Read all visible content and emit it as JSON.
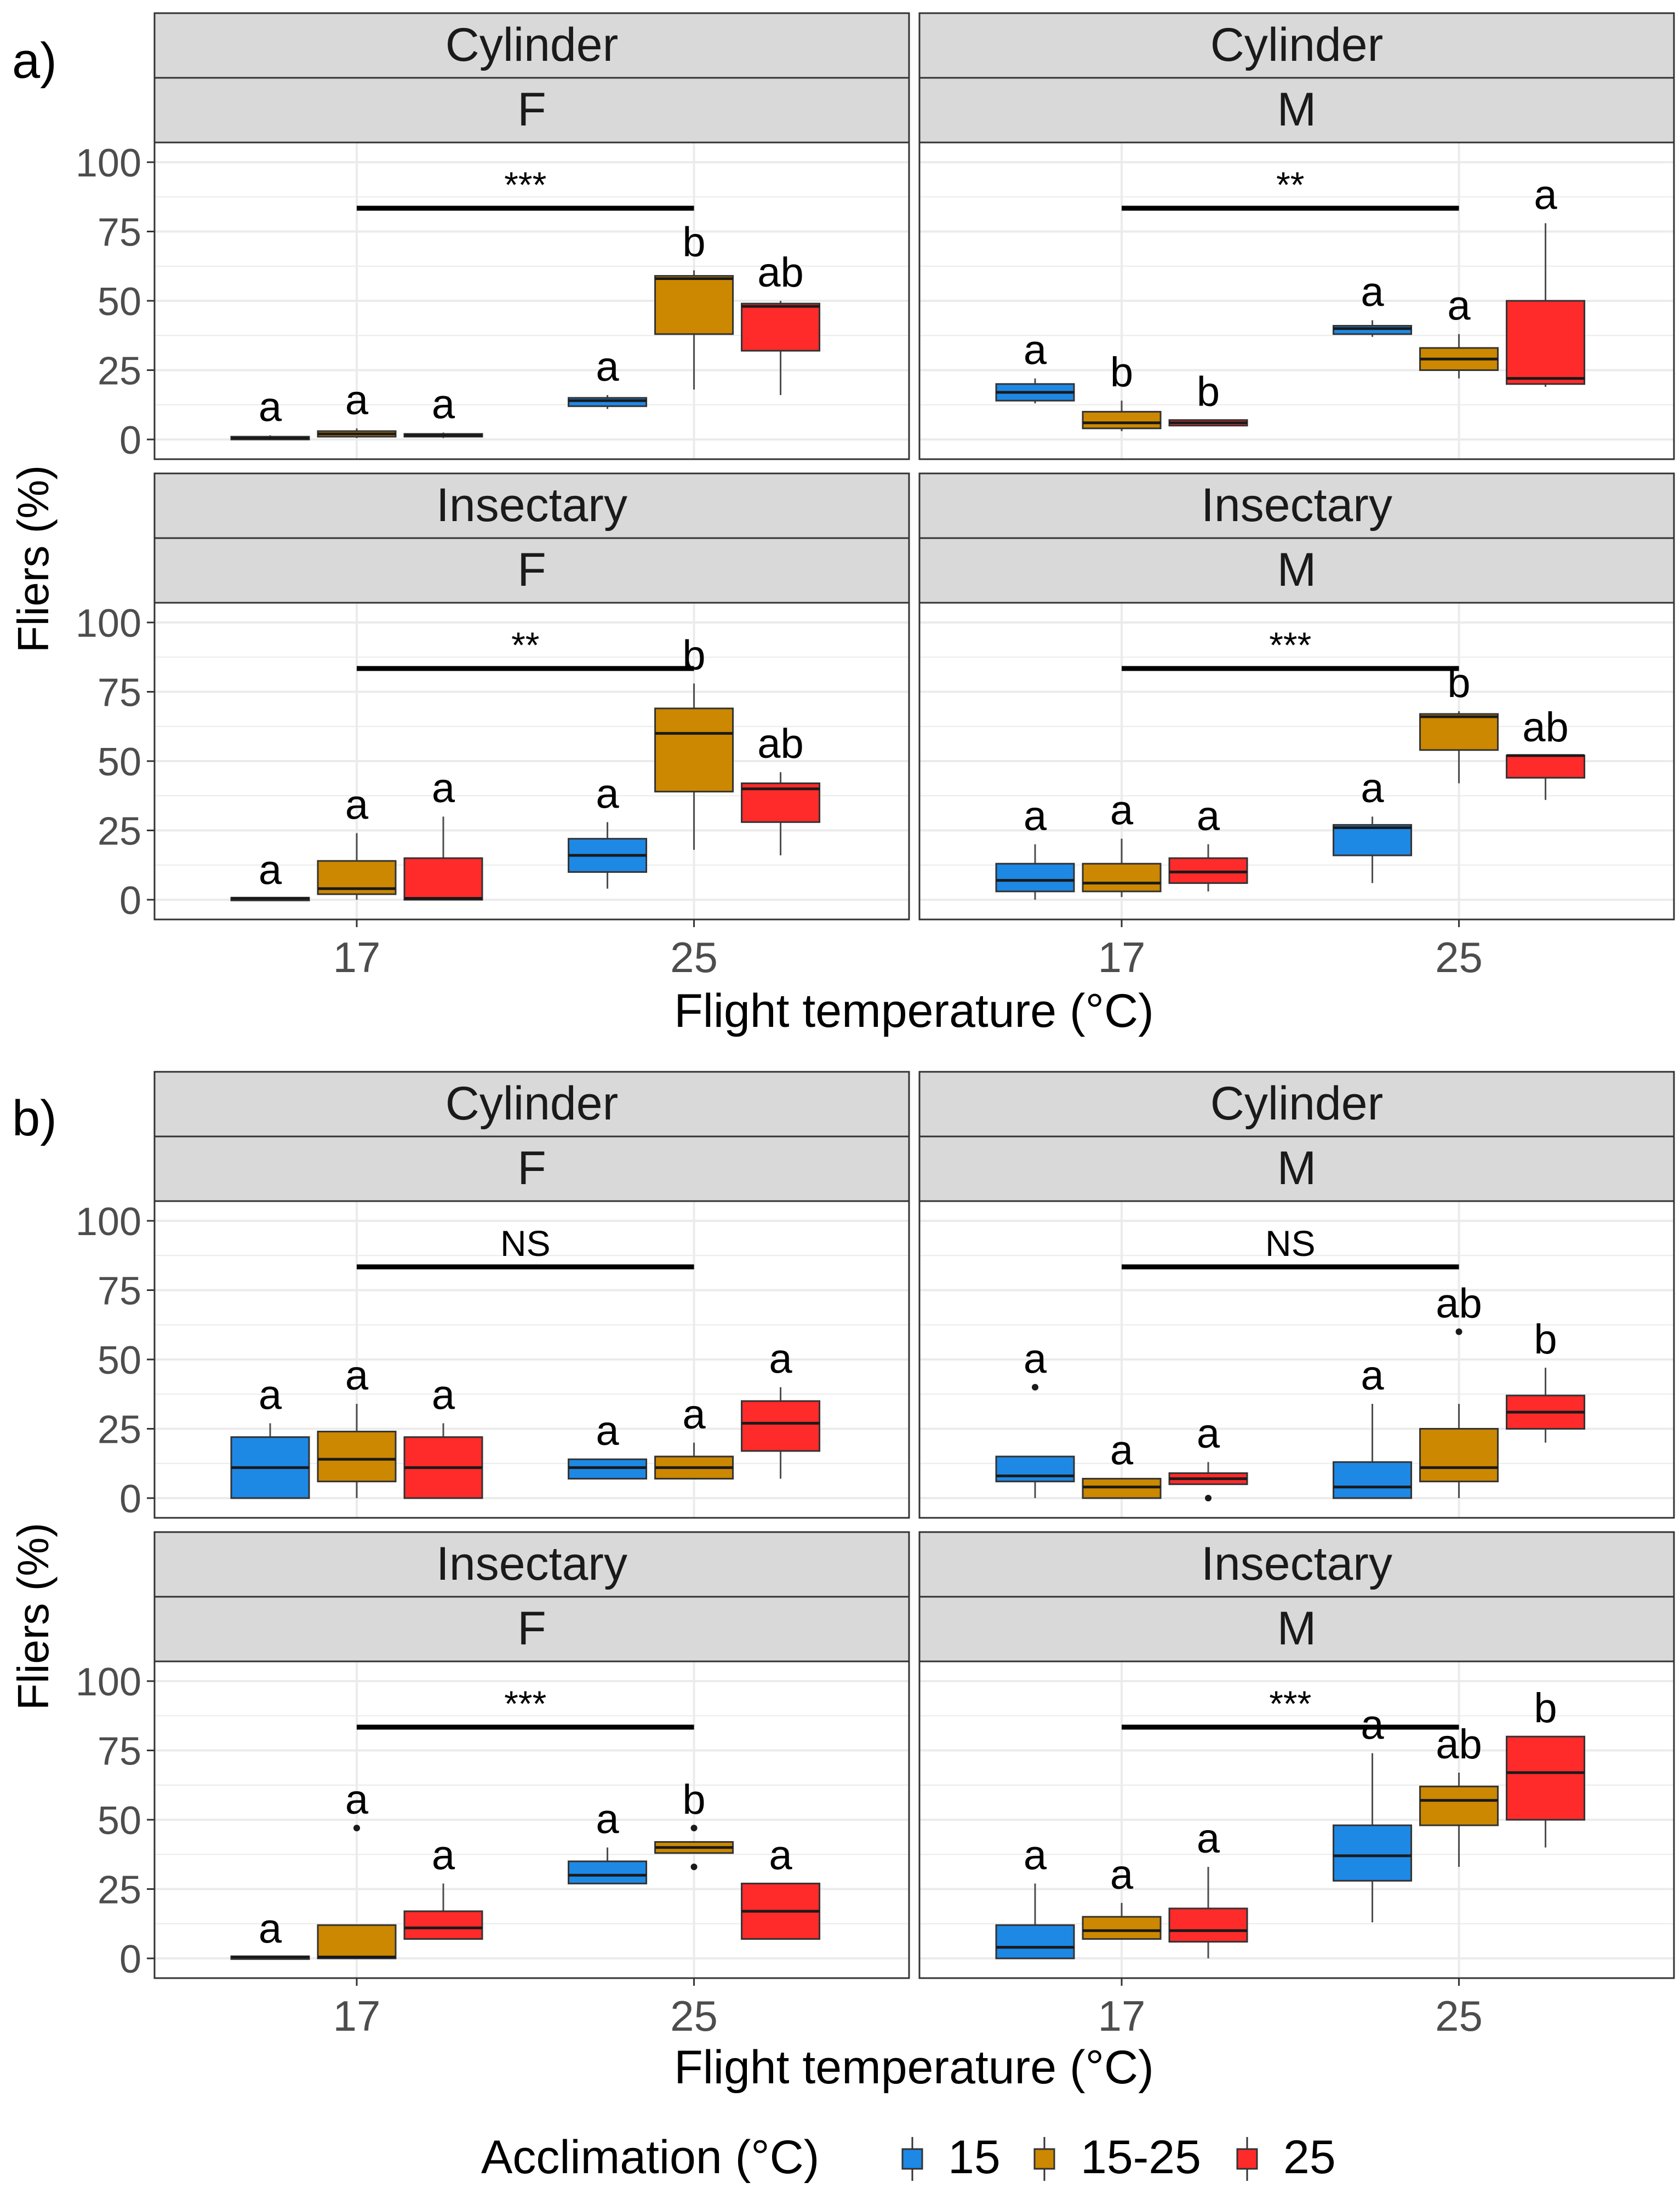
{
  "panel_labels": [
    "a)",
    "b)"
  ],
  "x_axis_label": "Flight temperature (°C)",
  "y_axis_label": "Fliers (%)",
  "legend": {
    "title": "Acclimation (°C)",
    "items": [
      {
        "label": "15",
        "color": "#1E88E5"
      },
      {
        "label": "15-25",
        "color": "#CC8800"
      },
      {
        "label": "25",
        "color": "#FF2A2A"
      }
    ]
  },
  "colors": {
    "15": "#1E88E5",
    "15-25": "#CC8800",
    "25": "#FF2A2A",
    "strip_bg": "#D9D9D9",
    "grid": "#EBEBEB"
  },
  "chart_data": [
    {
      "type": "boxplot",
      "figure_part": "a)",
      "ylim": [
        0,
        100
      ],
      "y_ticks": [
        0,
        25,
        50,
        75,
        100
      ],
      "x_categories": [
        "17",
        "25"
      ],
      "series_names": [
        "15",
        "15-25",
        "25"
      ],
      "facets": [
        {
          "strip": [
            "Cylinder",
            "F"
          ],
          "bracket": {
            "x_from": "17",
            "x_to": "25",
            "label": "***"
          },
          "groups": [
            {
              "x": "17",
              "boxes": [
                {
                  "series": "15",
                  "min": 0,
                  "q1": 0,
                  "median": 0.5,
                  "q3": 1,
                  "max": 1.5,
                  "letter": "a"
                },
                {
                  "series": "15-25",
                  "min": 0.5,
                  "q1": 1,
                  "median": 2,
                  "q3": 3,
                  "max": 4,
                  "letter": "a"
                },
                {
                  "series": "25",
                  "min": 0.5,
                  "q1": 1,
                  "median": 1.5,
                  "q3": 2,
                  "max": 2.5,
                  "letter": "a"
                }
              ]
            },
            {
              "x": "25",
              "boxes": [
                {
                  "series": "15",
                  "min": 11,
                  "q1": 12,
                  "median": 14,
                  "q3": 15,
                  "max": 16,
                  "letter": "a"
                },
                {
                  "series": "15-25",
                  "min": 18,
                  "q1": 38,
                  "median": 58,
                  "q3": 59,
                  "max": 61,
                  "letter": "b"
                },
                {
                  "series": "25",
                  "min": 16,
                  "q1": 32,
                  "median": 48,
                  "q3": 49,
                  "max": 50,
                  "letter": "ab"
                }
              ]
            }
          ]
        },
        {
          "strip": [
            "Cylinder",
            "M"
          ],
          "bracket": {
            "x_from": "17",
            "x_to": "25",
            "label": "**"
          },
          "groups": [
            {
              "x": "17",
              "boxes": [
                {
                  "series": "15",
                  "min": 13,
                  "q1": 14,
                  "median": 17,
                  "q3": 20,
                  "max": 22,
                  "letter": "a"
                },
                {
                  "series": "15-25",
                  "min": 3,
                  "q1": 4,
                  "median": 6,
                  "q3": 10,
                  "max": 14,
                  "letter": "b"
                },
                {
                  "series": "25",
                  "min": 5,
                  "q1": 5,
                  "median": 6,
                  "q3": 7,
                  "max": 7,
                  "letter": "b"
                }
              ]
            },
            {
              "x": "25",
              "boxes": [
                {
                  "series": "15",
                  "min": 37,
                  "q1": 38,
                  "median": 40,
                  "q3": 41,
                  "max": 43,
                  "letter": "a"
                },
                {
                  "series": "15-25",
                  "min": 22,
                  "q1": 25,
                  "median": 29,
                  "q3": 33,
                  "max": 38,
                  "letter": "a"
                },
                {
                  "series": "25",
                  "min": 19,
                  "q1": 20,
                  "median": 22,
                  "q3": 50,
                  "max": 78,
                  "letter": "a"
                }
              ]
            }
          ]
        },
        {
          "strip": [
            "Insectary",
            "F"
          ],
          "bracket": {
            "x_from": "17",
            "x_to": "25",
            "label": "**"
          },
          "groups": [
            {
              "x": "17",
              "boxes": [
                {
                  "series": "15",
                  "min": 0,
                  "q1": 0,
                  "median": 0.5,
                  "q3": 0.5,
                  "max": 0.5,
                  "letter": "a"
                },
                {
                  "series": "15-25",
                  "min": 0,
                  "q1": 2,
                  "median": 4,
                  "q3": 14,
                  "max": 24,
                  "letter": "a"
                },
                {
                  "series": "25",
                  "min": 0,
                  "q1": 0,
                  "median": 0.5,
                  "q3": 15,
                  "max": 30,
                  "letter": "a"
                }
              ]
            },
            {
              "x": "25",
              "boxes": [
                {
                  "series": "15",
                  "min": 4,
                  "q1": 10,
                  "median": 16,
                  "q3": 22,
                  "max": 28,
                  "letter": "a"
                },
                {
                  "series": "15-25",
                  "min": 18,
                  "q1": 39,
                  "median": 60,
                  "q3": 69,
                  "max": 78,
                  "letter": "b"
                },
                {
                  "series": "25",
                  "min": 16,
                  "q1": 28,
                  "median": 40,
                  "q3": 42,
                  "max": 46,
                  "letter": "ab"
                }
              ]
            }
          ]
        },
        {
          "strip": [
            "Insectary",
            "M"
          ],
          "bracket": {
            "x_from": "17",
            "x_to": "25",
            "label": "***"
          },
          "groups": [
            {
              "x": "17",
              "boxes": [
                {
                  "series": "15",
                  "min": 0,
                  "q1": 3,
                  "median": 7,
                  "q3": 13,
                  "max": 20,
                  "letter": "a"
                },
                {
                  "series": "15-25",
                  "min": 1,
                  "q1": 3,
                  "median": 6,
                  "q3": 13,
                  "max": 22,
                  "letter": "a"
                },
                {
                  "series": "25",
                  "min": 3,
                  "q1": 6,
                  "median": 10,
                  "q3": 15,
                  "max": 20,
                  "letter": "a"
                }
              ]
            },
            {
              "x": "25",
              "boxes": [
                {
                  "series": "15",
                  "min": 6,
                  "q1": 16,
                  "median": 26,
                  "q3": 27,
                  "max": 30,
                  "letter": "a"
                },
                {
                  "series": "15-25",
                  "min": 42,
                  "q1": 54,
                  "median": 66,
                  "q3": 67,
                  "max": 68,
                  "letter": "b"
                },
                {
                  "series": "25",
                  "min": 36,
                  "q1": 44,
                  "median": 52,
                  "q3": 52,
                  "max": 52,
                  "letter": "ab"
                }
              ]
            }
          ]
        }
      ]
    },
    {
      "type": "boxplot",
      "figure_part": "b)",
      "ylim": [
        0,
        100
      ],
      "y_ticks": [
        0,
        25,
        50,
        75,
        100
      ],
      "x_categories": [
        "17",
        "25"
      ],
      "series_names": [
        "15",
        "15-25",
        "25"
      ],
      "facets": [
        {
          "strip": [
            "Cylinder",
            "F"
          ],
          "bracket": {
            "x_from": "17",
            "x_to": "25",
            "label": "NS"
          },
          "groups": [
            {
              "x": "17",
              "boxes": [
                {
                  "series": "15",
                  "min": 0,
                  "q1": 0,
                  "median": 11,
                  "q3": 22,
                  "max": 27,
                  "letter": "a"
                },
                {
                  "series": "15-25",
                  "min": 0,
                  "q1": 6,
                  "median": 14,
                  "q3": 24,
                  "max": 34,
                  "letter": "a"
                },
                {
                  "series": "25",
                  "min": 0,
                  "q1": 0,
                  "median": 11,
                  "q3": 22,
                  "max": 27,
                  "letter": "a"
                }
              ]
            },
            {
              "x": "25",
              "boxes": [
                {
                  "series": "15",
                  "min": 7,
                  "q1": 7,
                  "median": 11,
                  "q3": 14,
                  "max": 14,
                  "letter": "a"
                },
                {
                  "series": "15-25",
                  "min": 7,
                  "q1": 7,
                  "median": 11,
                  "q3": 15,
                  "max": 20,
                  "letter": "a"
                },
                {
                  "series": "25",
                  "min": 7,
                  "q1": 17,
                  "median": 27,
                  "q3": 35,
                  "max": 40,
                  "letter": "a"
                }
              ]
            }
          ]
        },
        {
          "strip": [
            "Cylinder",
            "M"
          ],
          "bracket": {
            "x_from": "17",
            "x_to": "25",
            "label": "NS"
          },
          "groups": [
            {
              "x": "17",
              "boxes": [
                {
                  "series": "15",
                  "min": 0,
                  "q1": 6,
                  "median": 8,
                  "q3": 15,
                  "max": 15,
                  "outliers": [
                    40
                  ],
                  "letter": "a"
                },
                {
                  "series": "15-25",
                  "min": 0,
                  "q1": 0,
                  "median": 4,
                  "q3": 7,
                  "max": 7,
                  "letter": "a"
                },
                {
                  "series": "25",
                  "min": 5,
                  "q1": 5,
                  "median": 7,
                  "q3": 9,
                  "max": 13,
                  "outliers": [
                    0
                  ],
                  "letter": "a"
                }
              ]
            },
            {
              "x": "25",
              "boxes": [
                {
                  "series": "15",
                  "min": 0,
                  "q1": 0,
                  "median": 4,
                  "q3": 13,
                  "max": 34,
                  "letter": "a"
                },
                {
                  "series": "15-25",
                  "min": 0,
                  "q1": 6,
                  "median": 11,
                  "q3": 25,
                  "max": 34,
                  "outliers": [
                    60
                  ],
                  "letter": "ab"
                },
                {
                  "series": "25",
                  "min": 20,
                  "q1": 25,
                  "median": 31,
                  "q3": 37,
                  "max": 47,
                  "letter": "b"
                }
              ]
            }
          ]
        },
        {
          "strip": [
            "Insectary",
            "F"
          ],
          "bracket": {
            "x_from": "17",
            "x_to": "25",
            "label": "***"
          },
          "groups": [
            {
              "x": "17",
              "boxes": [
                {
                  "series": "15",
                  "min": 0,
                  "q1": 0,
                  "median": 0.5,
                  "q3": 0.5,
                  "max": 0.5,
                  "letter": "a"
                },
                {
                  "series": "15-25",
                  "min": 0,
                  "q1": 0,
                  "median": 0.5,
                  "q3": 12,
                  "max": 12,
                  "outliers": [
                    47
                  ],
                  "letter": "a"
                },
                {
                  "series": "25",
                  "min": 7,
                  "q1": 7,
                  "median": 11,
                  "q3": 17,
                  "max": 27,
                  "letter": "a"
                }
              ]
            },
            {
              "x": "25",
              "boxes": [
                {
                  "series": "15",
                  "min": 27,
                  "q1": 27,
                  "median": 30,
                  "q3": 35,
                  "max": 40,
                  "letter": "a"
                },
                {
                  "series": "15-25",
                  "min": 38,
                  "q1": 38,
                  "median": 40,
                  "q3": 42,
                  "max": 42,
                  "outliers": [
                    33,
                    47
                  ],
                  "letter": "b"
                },
                {
                  "series": "25",
                  "min": 7,
                  "q1": 7,
                  "median": 17,
                  "q3": 27,
                  "max": 27,
                  "letter": "a"
                }
              ]
            }
          ]
        },
        {
          "strip": [
            "Insectary",
            "M"
          ],
          "bracket": {
            "x_from": "17",
            "x_to": "25",
            "label": "***"
          },
          "groups": [
            {
              "x": "17",
              "boxes": [
                {
                  "series": "15",
                  "min": 0,
                  "q1": 0,
                  "median": 4,
                  "q3": 12,
                  "max": 27,
                  "letter": "a"
                },
                {
                  "series": "15-25",
                  "min": 7,
                  "q1": 7,
                  "median": 10,
                  "q3": 15,
                  "max": 20,
                  "letter": "a"
                },
                {
                  "series": "25",
                  "min": 0,
                  "q1": 6,
                  "median": 10,
                  "q3": 18,
                  "max": 33,
                  "letter": "a"
                }
              ]
            },
            {
              "x": "25",
              "boxes": [
                {
                  "series": "15",
                  "min": 13,
                  "q1": 28,
                  "median": 37,
                  "q3": 48,
                  "max": 74,
                  "letter": "a"
                },
                {
                  "series": "15-25",
                  "min": 33,
                  "q1": 48,
                  "median": 57,
                  "q3": 62,
                  "max": 67,
                  "letter": "ab"
                },
                {
                  "series": "25",
                  "min": 40,
                  "q1": 50,
                  "median": 67,
                  "q3": 80,
                  "max": 80,
                  "letter": "b"
                }
              ]
            }
          ]
        }
      ]
    }
  ]
}
